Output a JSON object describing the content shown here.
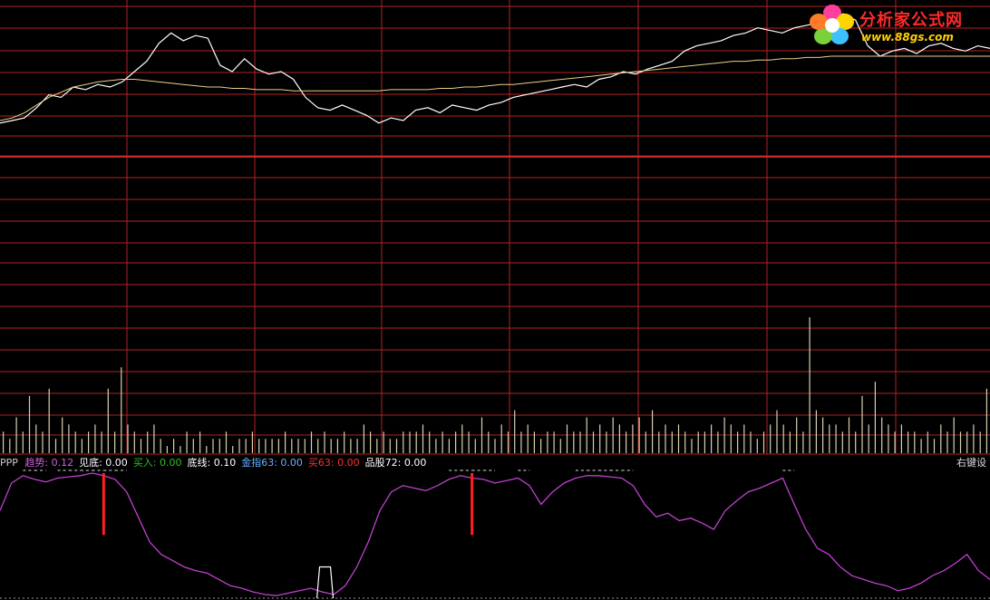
{
  "colors": {
    "grid": "#b22222",
    "price": "#ffffff",
    "avg": "#e6d28a",
    "volume": "#d8d2b0",
    "trend": "#c040d0",
    "signal": "#ff2020",
    "baseline": "#9a9a9a"
  },
  "indicator_bar": {
    "name": "PPP",
    "items": [
      {
        "label": "趋势",
        "value": "0.12",
        "color": "#d060e0"
      },
      {
        "label": "见底",
        "value": "0.00",
        "color": "#ffffff"
      },
      {
        "label": "买入",
        "value": "0.00",
        "color": "#2ec02e"
      },
      {
        "label": "底线",
        "value": "0.10",
        "color": "#ffffff"
      },
      {
        "label": "金指63",
        "value": "0.00",
        "color": "#6ab0ff"
      },
      {
        "label": "买63",
        "value": "0.00",
        "color": "#ff3030"
      },
      {
        "label": "品股72",
        "value": "0.00",
        "color": "#ffffff"
      }
    ],
    "right_hint": "右键设"
  },
  "logo": {
    "title": "分析家公式网",
    "url": "www.88gs.com"
  },
  "chart_data": [
    {
      "type": "line",
      "panel": "price",
      "series": [
        {
          "values": [
            0.1,
            0.12,
            0.14,
            0.22,
            0.32,
            0.3,
            0.38,
            0.36,
            0.4,
            0.38,
            0.42,
            0.5,
            0.58,
            0.72,
            0.8,
            0.74,
            0.78,
            0.76,
            0.55,
            0.5,
            0.6,
            0.52,
            0.48,
            0.5,
            0.44,
            0.3,
            0.22,
            0.2,
            0.24,
            0.2,
            0.16,
            0.1,
            0.14,
            0.12,
            0.2,
            0.22,
            0.18,
            0.24,
            0.22,
            0.2,
            0.24,
            0.26,
            0.3,
            0.32,
            0.34,
            0.36,
            0.38,
            0.4,
            0.38,
            0.44,
            0.46,
            0.5,
            0.48,
            0.52,
            0.55,
            0.58,
            0.66,
            0.7,
            0.72,
            0.74,
            0.78,
            0.8,
            0.84,
            0.82,
            0.8,
            0.84,
            0.86,
            0.88,
            0.92,
            0.95,
            0.9,
            0.7,
            0.62,
            0.66,
            0.68,
            0.64,
            0.7,
            0.72,
            0.68,
            0.66,
            0.7,
            0.68
          ]
        },
        {
          "values": [
            0.12,
            0.14,
            0.18,
            0.24,
            0.3,
            0.34,
            0.38,
            0.4,
            0.42,
            0.43,
            0.44,
            0.44,
            0.43,
            0.42,
            0.41,
            0.4,
            0.39,
            0.38,
            0.38,
            0.37,
            0.37,
            0.36,
            0.36,
            0.36,
            0.35,
            0.35,
            0.35,
            0.35,
            0.35,
            0.35,
            0.35,
            0.35,
            0.36,
            0.36,
            0.36,
            0.36,
            0.37,
            0.37,
            0.38,
            0.38,
            0.39,
            0.4,
            0.4,
            0.41,
            0.42,
            0.43,
            0.44,
            0.45,
            0.46,
            0.47,
            0.48,
            0.49,
            0.5,
            0.51,
            0.52,
            0.53,
            0.54,
            0.55,
            0.56,
            0.57,
            0.58,
            0.58,
            0.59,
            0.59,
            0.6,
            0.6,
            0.61,
            0.61,
            0.62,
            0.62,
            0.62,
            0.62,
            0.62,
            0.62,
            0.62,
            0.62,
            0.62,
            0.62,
            0.62,
            0.62,
            0.62,
            0.62
          ]
        }
      ]
    },
    {
      "type": "bar",
      "panel": "volume",
      "values": [
        0.3,
        0.2,
        0.5,
        0.3,
        0.8,
        0.4,
        0.3,
        0.9,
        0.2,
        0.5,
        0.4,
        0.3,
        0.2,
        0.3,
        0.4,
        0.3,
        0.9,
        0.3,
        1.2,
        0.4,
        0.3,
        0.2,
        0.3,
        0.4,
        0.2,
        0.1,
        0.2,
        0.1,
        0.3,
        0.2,
        0.3,
        0.1,
        0.2,
        0.2,
        0.3,
        0.1,
        0.2,
        0.2,
        0.3,
        0.2,
        0.2,
        0.2,
        0.2,
        0.3,
        0.2,
        0.2,
        0.2,
        0.3,
        0.2,
        0.3,
        0.2,
        0.2,
        0.3,
        0.2,
        0.2,
        0.4,
        0.3,
        0.2,
        0.3,
        0.2,
        0.2,
        0.3,
        0.3,
        0.3,
        0.4,
        0.3,
        0.2,
        0.3,
        0.2,
        0.3,
        0.4,
        0.3,
        0.2,
        0.5,
        0.3,
        0.2,
        0.4,
        0.3,
        0.6,
        0.3,
        0.4,
        0.3,
        0.2,
        0.3,
        0.3,
        0.2,
        0.4,
        0.3,
        0.3,
        0.5,
        0.3,
        0.4,
        0.3,
        0.5,
        0.4,
        0.3,
        0.4,
        0.5,
        0.3,
        0.6,
        0.3,
        0.4,
        0.3,
        0.4,
        0.3,
        0.2,
        0.3,
        0.3,
        0.4,
        0.3,
        0.5,
        0.4,
        0.3,
        0.4,
        0.3,
        0.2,
        0.3,
        0.4,
        0.6,
        0.4,
        0.3,
        0.5,
        0.3,
        1.9,
        0.6,
        0.5,
        0.4,
        0.4,
        0.3,
        0.5,
        0.3,
        0.8,
        0.4,
        1.0,
        0.5,
        0.4,
        0.3,
        0.4,
        0.3,
        0.3,
        0.2,
        0.3,
        0.2,
        0.4,
        0.3,
        0.5,
        0.3,
        0.3,
        0.4,
        0.3,
        0.9
      ]
    },
    {
      "type": "line",
      "panel": "indicator",
      "series": [
        {
          "values": [
            0.7,
            0.92,
            0.98,
            0.95,
            0.93,
            0.96,
            0.97,
            0.98,
            1.0,
            0.98,
            0.95,
            0.85,
            0.65,
            0.45,
            0.35,
            0.3,
            0.25,
            0.22,
            0.2,
            0.15,
            0.1,
            0.08,
            0.05,
            0.03,
            0.02,
            0.04,
            0.06,
            0.08,
            0.05,
            0.03,
            0.1,
            0.25,
            0.45,
            0.7,
            0.85,
            0.9,
            0.88,
            0.86,
            0.9,
            0.95,
            0.98,
            0.96,
            0.95,
            0.92,
            0.94,
            0.96,
            0.9,
            0.75,
            0.85,
            0.92,
            0.96,
            0.98,
            0.98,
            0.97,
            0.96,
            0.9,
            0.75,
            0.65,
            0.68,
            0.62,
            0.64,
            0.6,
            0.55,
            0.7,
            0.78,
            0.85,
            0.88,
            0.92,
            0.96,
            0.75,
            0.55,
            0.4,
            0.35,
            0.25,
            0.18,
            0.15,
            0.12,
            0.1,
            0.06,
            0.08,
            0.12,
            0.18,
            0.22,
            0.28,
            0.35,
            0.22,
            0.15
          ]
        }
      ],
      "signals": [
        {
          "index": 9,
          "value": 0.55
        },
        {
          "index": 41,
          "value": 0.55
        }
      ],
      "plateaus": [
        {
          "index": 28,
          "value": 0.25
        }
      ]
    }
  ]
}
